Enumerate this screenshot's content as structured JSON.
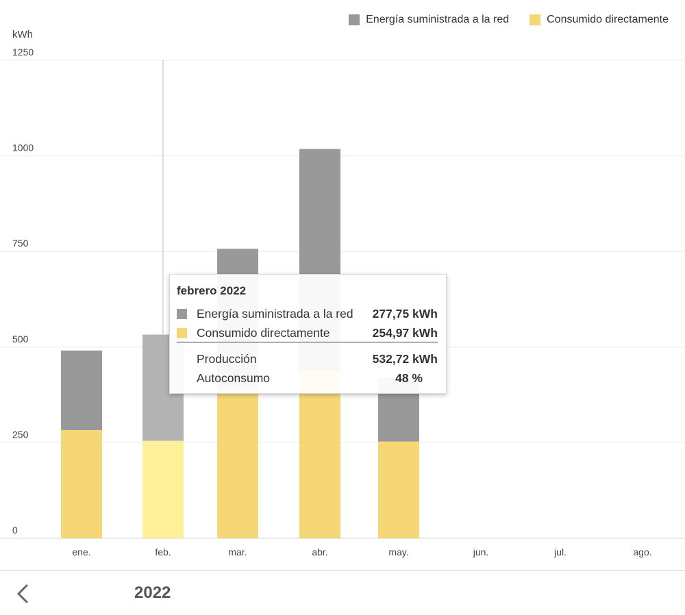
{
  "chart_data": {
    "type": "bar",
    "stacked": true,
    "ylabel": "kWh",
    "ylim": [
      0,
      1250
    ],
    "yticks": [
      0,
      250,
      500,
      750,
      1000,
      1250
    ],
    "grid": true,
    "legend_position": "top-right",
    "categories": [
      "ene.",
      "feb.",
      "mar.",
      "abr.",
      "may.",
      "jun.",
      "jul.",
      "ago."
    ],
    "series": [
      {
        "name": "Consumido directamente",
        "color": "#f5d776",
        "values": [
          283,
          254.97,
          392,
          438,
          253,
          0,
          0,
          0
        ]
      },
      {
        "name": "Energía suministrada a la red",
        "color": "#999999",
        "values": [
          208,
          277.75,
          365,
          580,
          167,
          0,
          0,
          0
        ]
      }
    ],
    "highlighted_category": "feb.",
    "highlight_colors": {
      "Consumido directamente": "#fdf098",
      "Energía suministrada a la red": "#b3b3b3"
    }
  },
  "tooltip": {
    "title": "febrero 2022",
    "rows": [
      {
        "label": "Energía suministrada a la red",
        "value": "277,75 kWh",
        "color": "#999999"
      },
      {
        "label": "Consumido directamente",
        "value": "254,97 kWh",
        "color": "#f5d776"
      },
      {
        "label": "Producción",
        "value": "532,72 kWh"
      },
      {
        "label": "Autoconsumo",
        "value": "48 %"
      }
    ]
  },
  "footer": {
    "year": "2022",
    "back_icon": "chevron-left-icon"
  }
}
